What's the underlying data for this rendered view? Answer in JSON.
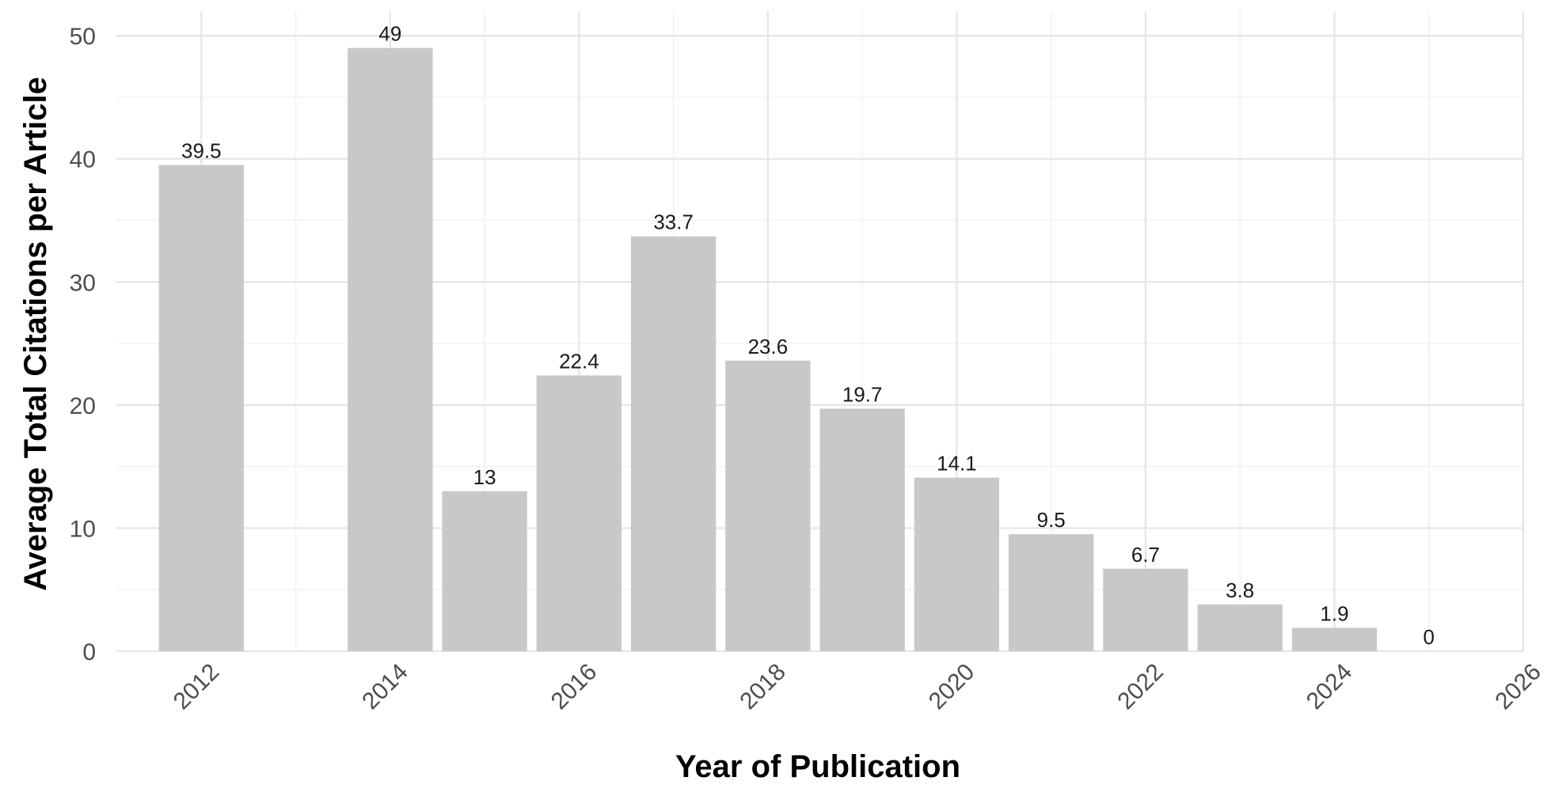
{
  "chart_data": {
    "type": "bar",
    "xlabel": "Year of Publication",
    "ylabel": "Average Total Citations per Article",
    "x": [
      2012,
      2014,
      2015,
      2016,
      2017,
      2018,
      2019,
      2020,
      2021,
      2022,
      2023,
      2024,
      2025
    ],
    "values": [
      39.5,
      49,
      13,
      22.4,
      33.7,
      23.6,
      19.7,
      14.1,
      9.5,
      6.7,
      3.8,
      1.9,
      0
    ],
    "labels": [
      "39.5",
      "49",
      "13",
      "22.4",
      "33.7",
      "23.6",
      "19.7",
      "14.1",
      "9.5",
      "6.7",
      "3.8",
      "1.9",
      "0"
    ],
    "xlim": [
      2011.1,
      2026
    ],
    "ylim": [
      0,
      52
    ],
    "x_ticks": [
      2012,
      2014,
      2016,
      2018,
      2020,
      2022,
      2024,
      2026
    ],
    "y_ticks": [
      0,
      10,
      20,
      30,
      40,
      50
    ],
    "bar_color": "#c8c8c8",
    "grid": true,
    "legend": false
  }
}
